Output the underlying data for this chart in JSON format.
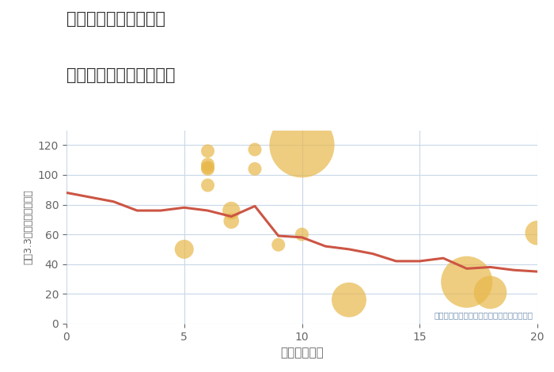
{
  "title_line1": "愛知県豊川市野口町の",
  "title_line2": "駅距離別中古戸建て価格",
  "xlabel": "駅距離（分）",
  "ylabel": "坪（3.3㎡）単価（万円）",
  "annotation": "円の大きさは、取引のあった物件面積を示す",
  "line_x": [
    0,
    1,
    2,
    3,
    4,
    5,
    6,
    7,
    8,
    9,
    10,
    11,
    12,
    13,
    14,
    15,
    16,
    17,
    18,
    19,
    20
  ],
  "line_y": [
    88,
    85,
    82,
    76,
    76,
    78,
    76,
    72,
    79,
    59,
    58,
    52,
    50,
    47,
    42,
    42,
    44,
    37,
    38,
    36,
    35
  ],
  "line_color": "#cc5544",
  "line_width": 2.2,
  "bubble_x": [
    5,
    6,
    6,
    6,
    6,
    6,
    7,
    7,
    8,
    8,
    9,
    10,
    10,
    12,
    17,
    18,
    20
  ],
  "bubble_y": [
    50,
    116,
    107,
    105,
    104,
    93,
    69,
    76,
    104,
    117,
    53,
    120,
    60,
    16,
    28,
    21,
    61
  ],
  "bubble_size": [
    300,
    150,
    150,
    150,
    150,
    150,
    200,
    260,
    150,
    150,
    150,
    3500,
    150,
    1000,
    2200,
    900,
    500
  ],
  "bubble_color": "#e8b84b",
  "bubble_alpha": 0.7,
  "xlim": [
    0,
    20
  ],
  "ylim": [
    0,
    130
  ],
  "xticks": [
    0,
    5,
    10,
    15,
    20
  ],
  "yticks": [
    0,
    20,
    40,
    60,
    80,
    100,
    120
  ],
  "bg_color": "#ffffff",
  "plot_bg_color": "#ffffff",
  "grid_color": "#c8d8e8",
  "title_color": "#333333",
  "axis_color": "#666666",
  "annotation_color": "#7090b0"
}
